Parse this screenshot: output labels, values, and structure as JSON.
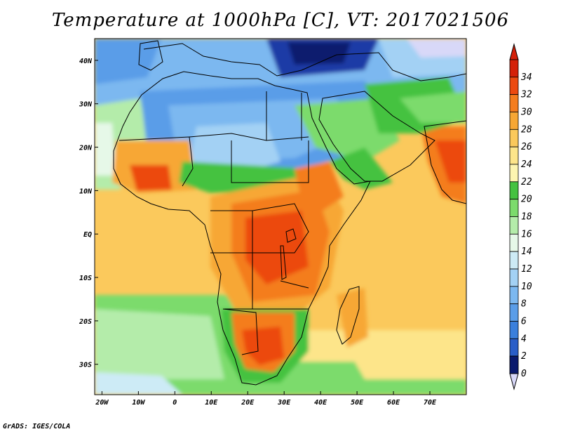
{
  "title": "Temperature at 1000hPa [C], VT: 2017021506",
  "credit": "GrADS: IGES/COLA",
  "map": {
    "lon_range": [
      -22,
      80
    ],
    "lat_range": [
      -37,
      45
    ],
    "lon_ticks": [
      {
        "lon": -20,
        "label": "20W"
      },
      {
        "lon": -10,
        "label": "10W"
      },
      {
        "lon": 0,
        "label": "0"
      },
      {
        "lon": 10,
        "label": "10E"
      },
      {
        "lon": 20,
        "label": "20E"
      },
      {
        "lon": 30,
        "label": "30E"
      },
      {
        "lon": 40,
        "label": "40E"
      },
      {
        "lon": 50,
        "label": "50E"
      },
      {
        "lon": 60,
        "label": "60E"
      },
      {
        "lon": 70,
        "label": "70E"
      }
    ],
    "lat_ticks": [
      {
        "lat": 40,
        "label": "40N"
      },
      {
        "lat": 30,
        "label": "30N"
      },
      {
        "lat": 20,
        "label": "20N"
      },
      {
        "lat": 10,
        "label": "10N"
      },
      {
        "lat": 0,
        "label": "EQ"
      },
      {
        "lat": -10,
        "label": "10S"
      },
      {
        "lat": -20,
        "label": "20S"
      },
      {
        "lat": -30,
        "label": "30S"
      }
    ]
  },
  "colorbar": {
    "levels": [
      "0",
      "2",
      "4",
      "6",
      "8",
      "10",
      "12",
      "14",
      "16",
      "18",
      "20",
      "22",
      "24",
      "26",
      "28",
      "30",
      "32",
      "34"
    ],
    "colors": [
      "#0a1a6e",
      "#1c3aa6",
      "#2a5ec8",
      "#3a7fdc",
      "#5a9de8",
      "#7cb8f0",
      "#a3d1f4",
      "#cdebf6",
      "#e6f8e8",
      "#b4ecaa",
      "#7cdb6c",
      "#44c240",
      "#fdf5b0",
      "#fde58a",
      "#fbc95c",
      "#f7a734",
      "#f47d1e",
      "#ec4a10",
      "#d42008"
    ],
    "under_color": "#d8d8f8"
  }
}
